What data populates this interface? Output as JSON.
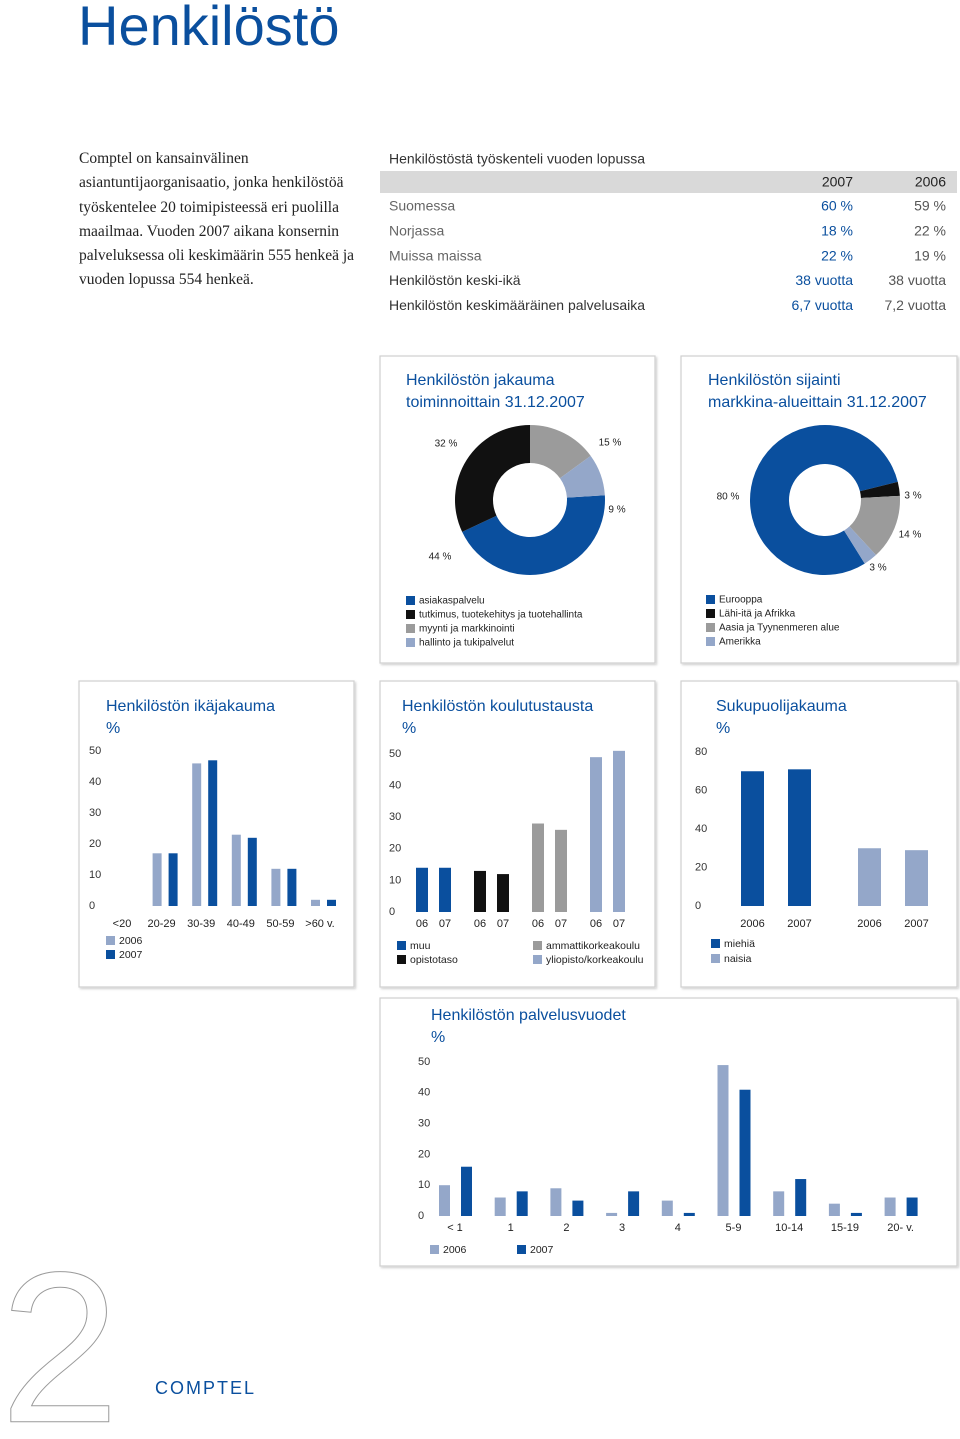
{
  "title": "Henkilöstö",
  "intro": "Comptel on kansainvälinen asiantuntijaorganisaatio, jonka henkilöstöä työskentelee 20 toimipisteessä eri puolilla maailmaa. Vuoden 2007 aikana konsernin palveluksessa oli keskimäärin 555 henkeä ja vuoden lopussa 554 henkeä.",
  "table": {
    "title": "Henkilöstöstä työskenteli vuoden lopussa",
    "columns": [
      "2007",
      "2006"
    ],
    "rows": [
      [
        "Suomessa",
        "60 %",
        "59 %"
      ],
      [
        "Norjassa",
        "18 %",
        "22 %"
      ],
      [
        "Muissa maissa",
        "22 %",
        "19 %"
      ],
      [
        "Henkilöstön keski-ikä",
        "38 vuotta",
        "38 vuotta"
      ],
      [
        "Henkilöstön keskimääräinen palvelusaika",
        "6,7 vuotta",
        "7,2 vuotta"
      ]
    ]
  },
  "chart_data": [
    {
      "type": "pie",
      "title": [
        "Henkilöstön jakauma",
        "toiminnoittain 31.12.2007"
      ],
      "categories": [
        "asiakaspalvelu",
        "tutkimus, tuotekehitys ja tuotehallinta",
        "myynti ja markkinointi",
        "hallinto ja tukipalvelut"
      ],
      "values": [
        44,
        32,
        15,
        9
      ],
      "value_labels": [
        "44 %",
        "32 %",
        "15 %",
        "9 %"
      ],
      "colors": [
        "#0a4f9e",
        "#111111",
        "#9b9b9b",
        "#94a7c9"
      ]
    },
    {
      "type": "pie",
      "title": [
        "Henkilöstön sijainti",
        "markkina-alueittain 31.12.2007"
      ],
      "categories": [
        "Eurooppa",
        "Lähi-itä ja Afrikka",
        "Aasia ja Tyynenmeren alue",
        "Amerikka"
      ],
      "values": [
        80,
        3,
        14,
        3
      ],
      "value_labels": [
        "80 %",
        "3 %",
        "14 %",
        "3 %"
      ],
      "colors": [
        "#0a4f9e",
        "#111111",
        "#9b9b9b",
        "#94a7c9"
      ]
    },
    {
      "type": "bar",
      "title": "Henkilöstön ikäjakauma",
      "subtitle": "%",
      "categories": [
        "<20",
        "20-29",
        "30-39",
        "40-49",
        "50-59",
        ">60 v."
      ],
      "series": [
        {
          "name": "2006",
          "color": "#94a7c9",
          "values": [
            0,
            17,
            46,
            23,
            12,
            2
          ]
        },
        {
          "name": "2007",
          "color": "#0a4f9e",
          "values": [
            0,
            17,
            47,
            22,
            12,
            2
          ]
        }
      ],
      "ylim": [
        0,
        50
      ],
      "yticks": [
        0,
        10,
        20,
        30,
        40,
        50
      ]
    },
    {
      "type": "bar",
      "title": "Henkilöstön koulutustausta",
      "subtitle": "%",
      "series": [
        {
          "name": "muu",
          "color": "#0a4f9e",
          "categories": [
            "06",
            "07"
          ],
          "values": [
            14,
            14
          ]
        },
        {
          "name": "opistotaso",
          "color": "#111111",
          "categories": [
            "06",
            "07"
          ],
          "values": [
            13,
            12
          ]
        },
        {
          "name": "ammattikorkeakoulu",
          "color": "#9b9b9b",
          "categories": [
            "06",
            "07"
          ],
          "values": [
            28,
            26
          ]
        },
        {
          "name": "yliopisto/korkeakoulu",
          "color": "#94a7c9",
          "categories": [
            "06",
            "07"
          ],
          "values": [
            49,
            51
          ]
        }
      ],
      "ylim": [
        0,
        50
      ],
      "yticks": [
        0,
        10,
        20,
        30,
        40,
        50
      ]
    },
    {
      "type": "bar",
      "title": "Sukupuolijakauma",
      "subtitle": "%",
      "series": [
        {
          "name": "miehiä",
          "color": "#0a4f9e",
          "categories": [
            "2006",
            "2007"
          ],
          "values": [
            70,
            71
          ]
        },
        {
          "name": "naisia",
          "color": "#94a7c9",
          "categories": [
            "2006",
            "2007"
          ],
          "values": [
            30,
            29
          ]
        }
      ],
      "ylim": [
        0,
        80
      ],
      "yticks": [
        0,
        20,
        40,
        60,
        80
      ]
    },
    {
      "type": "bar",
      "title": "Henkilöstön palvelusvuodet",
      "subtitle": "%",
      "categories": [
        "< 1",
        "1",
        "2",
        "3",
        "4",
        "5-9",
        "10-14",
        "15-19",
        "20- v."
      ],
      "series": [
        {
          "name": "2006",
          "color": "#94a7c9",
          "values": [
            10,
            6,
            9,
            1,
            5,
            49,
            8,
            4,
            6
          ]
        },
        {
          "name": "2007",
          "color": "#0a4f9e",
          "values": [
            16,
            8,
            5,
            8,
            1,
            41,
            12,
            1,
            6
          ]
        }
      ],
      "ylim": [
        0,
        50
      ],
      "yticks": [
        0,
        10,
        20,
        30,
        40,
        50
      ]
    }
  ],
  "footer": {
    "page": "2",
    "brand": "COMPTEL"
  }
}
